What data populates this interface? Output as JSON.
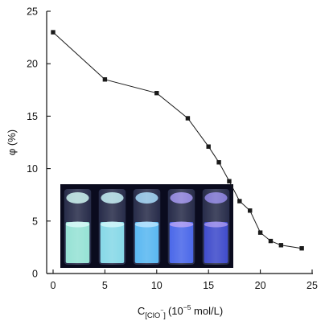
{
  "chart_data": {
    "type": "line",
    "title": "",
    "xlabel": {
      "base": "C",
      "subscript": "[ClO",
      "subscript_sup": "−",
      "subscript_close": "]",
      "unit_pre": "(10",
      "unit_exp": "−5",
      "unit_post": " mol/L)"
    },
    "ylabel": "φ (%)",
    "xlim": [
      -1,
      25
    ],
    "ylim": [
      0,
      25
    ],
    "xticks": [
      "0",
      "5",
      "10",
      "15",
      "20",
      "25"
    ],
    "yticks": [
      "0",
      "5",
      "10",
      "15",
      "20",
      "25"
    ],
    "grid": false,
    "legend": "none",
    "series": [
      {
        "marker": "square",
        "color": "#1a1a1a",
        "x": [
          0,
          5,
          10,
          13,
          15,
          16,
          17,
          18,
          19,
          20,
          21,
          22,
          24
        ],
        "y": [
          23.0,
          18.5,
          17.2,
          14.8,
          12.1,
          10.6,
          8.8,
          6.9,
          6.0,
          3.9,
          3.1,
          2.7,
          2.4
        ]
      }
    ]
  },
  "inset_photo": {
    "description_icon": "vials-under-uv-photo",
    "background": "#0a0b1e",
    "vials": [
      {
        "liquid": "#8fe0d2",
        "glow": "#c8f4f0"
      },
      {
        "liquid": "#7fd6e6",
        "glow": "#bff0f6"
      },
      {
        "liquid": "#4fb3f0",
        "glow": "#9fd8fb"
      },
      {
        "liquid": "#3f5ee8",
        "glow": "#9a8cf0"
      },
      {
        "liquid": "#3340c8",
        "glow": "#8a7ee6"
      }
    ]
  }
}
